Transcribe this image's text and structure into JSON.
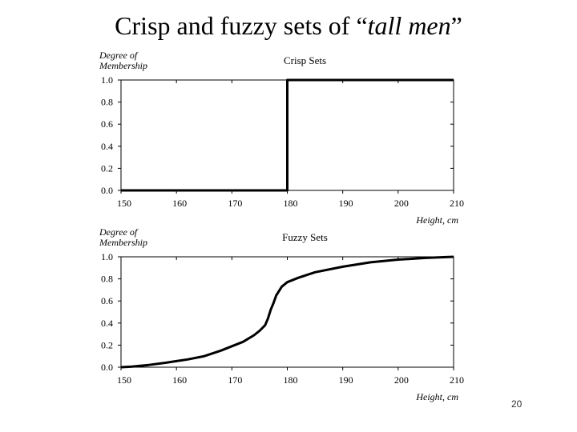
{
  "slide": {
    "title_prefix": "Crisp and fuzzy sets of “",
    "title_italic": "tall men",
    "title_suffix": "”",
    "page_number": "20"
  },
  "chart_data": [
    {
      "type": "line",
      "title": "Crisp Sets",
      "ylabel": [
        "Degree of",
        "Membership"
      ],
      "xlabel": "Height, cm",
      "xlim": [
        150,
        210
      ],
      "ylim": [
        0,
        1
      ],
      "x_ticks": [
        150,
        160,
        170,
        180,
        190,
        200,
        210
      ],
      "y_ticks": [
        "0.0",
        "0.2",
        "0.4",
        "0.6",
        "0.8",
        "1.0"
      ],
      "grid": false,
      "series": [
        {
          "x": [
            150,
            180,
            180,
            210
          ],
          "y": [
            0,
            0,
            1,
            1
          ]
        }
      ]
    },
    {
      "type": "line",
      "title": "Fuzzy Sets",
      "ylabel": [
        "Degree of",
        "Membership"
      ],
      "xlabel": "Height, cm",
      "xlim": [
        150,
        210
      ],
      "ylim": [
        0,
        1
      ],
      "x_ticks": [
        150,
        160,
        170,
        180,
        190,
        200,
        210
      ],
      "y_ticks": [
        "0.0",
        "0.2",
        "0.4",
        "0.6",
        "0.8",
        "1.0"
      ],
      "grid": false,
      "series": [
        {
          "x": [
            150,
            152,
            155,
            158,
            160,
            162,
            165,
            168,
            170,
            172,
            174,
            175,
            176,
            176.5,
            177,
            177.5,
            178,
            179,
            180,
            182,
            185,
            190,
            195,
            200,
            205,
            210
          ],
          "y": [
            0,
            0.005,
            0.02,
            0.04,
            0.055,
            0.07,
            0.1,
            0.15,
            0.19,
            0.23,
            0.29,
            0.33,
            0.38,
            0.44,
            0.52,
            0.58,
            0.65,
            0.73,
            0.77,
            0.81,
            0.86,
            0.91,
            0.95,
            0.975,
            0.99,
            1.0
          ]
        }
      ]
    }
  ]
}
